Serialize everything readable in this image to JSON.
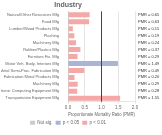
{
  "chart_data": {
    "type": "bar",
    "orientation": "horizontal",
    "title": "Industry",
    "xlabel": "Proportionate Mortality Ratio (PMR)",
    "categories": [
      "Natural/Other Resources Mfg",
      "Food Mfg",
      "Lumber/Wood Products Mfg",
      "Plashing",
      "Machinery Mfg",
      "Rubber/Plastics Mfg",
      "Furniture Fix. Mfg",
      "Motor Veh. Body, Interiors Mfg",
      "Primary Metal Semi-Proc. Fabrication Mfg",
      "Fabrication Metal Products Mfg",
      "Machinery Mfg",
      "Electronic Computing Equipment Mfg",
      "Transportation Equipment Mfg"
    ],
    "series": [
      {
        "name": "Not sig.",
        "color": "#cccccc",
        "values": [
          null,
          null,
          null,
          null,
          null,
          null,
          null,
          null,
          null,
          null,
          null,
          null,
          null
        ],
        "value_labels": [
          null,
          null,
          null,
          null,
          null,
          null,
          null,
          null,
          null,
          null,
          null,
          null,
          null
        ]
      },
      {
        "name": "p < 0.05",
        "color": "#aab4d4",
        "values": [
          null,
          null,
          null,
          null,
          null,
          null,
          null,
          1.49,
          null,
          null,
          null,
          null,
          null
        ],
        "value_labels": [
          null,
          null,
          null,
          null,
          null,
          null,
          null,
          "PMR = 1.49",
          null,
          null,
          null,
          null,
          null
        ]
      },
      {
        "name": "p < 0.01",
        "color": "#f4a9a8",
        "values": [
          0.645,
          0.63,
          0.145,
          0.19,
          0.24,
          0.37,
          0.285,
          null,
          0.485,
          0.195,
          0.29,
          0.275,
          1.555
        ],
        "value_labels": [
          "PMR = 0.65",
          "PMR = 0.63",
          "PMR = 0.15",
          "PMR = 0.19",
          "PMR = 0.24",
          "PMR = 0.37",
          "PMR = 0.29",
          null,
          "PMR = 0.49",
          "PMR = 0.20",
          "PMR = 0.29",
          "PMR = 0.28",
          "PMR = 1.55"
        ]
      }
    ],
    "reference_line": 1.0,
    "xlim": [
      0,
      2.0
    ],
    "xticks": [
      {
        "value": 0,
        "label": "0.0"
      },
      0.5,
      {
        "value": 1,
        "label": "1.0"
      },
      1.5,
      {
        "value": 2,
        "label": "2.0"
      }
    ],
    "grid": true,
    "legend": "bottom",
    "data_labels": true
  }
}
